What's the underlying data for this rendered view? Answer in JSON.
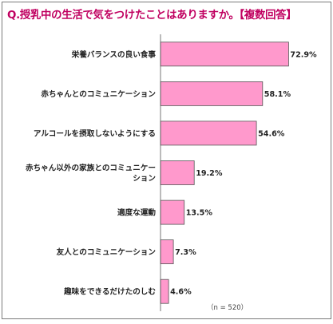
{
  "chart_data": {
    "type": "bar",
    "orientation": "horizontal",
    "title": "Q.授乳中の生活で気をつけたことはありますか。【複数回答】",
    "categories": [
      "栄養バランスの良い食事",
      "赤ちゃんとのコミュニケーション",
      "アルコールを摂取しないようにする",
      "赤ちゃん以外の家族とのコミュニケーション",
      "適度な運動",
      "友人とのコミュニケーション",
      "趣味をできるだけたのしむ"
    ],
    "category_lines": [
      [
        "栄養バランスの良い食事"
      ],
      [
        "赤ちゃんとのコミュニケーション"
      ],
      [
        "アルコールを摂取しないようにする"
      ],
      [
        "赤ちゃん以外の家族とのコミュニケー",
        "ション"
      ],
      [
        "適度な運動"
      ],
      [
        "友人とのコミュニケーション"
      ],
      [
        "趣味をできるだけたのしむ"
      ]
    ],
    "values": [
      72.9,
      58.1,
      54.6,
      19.2,
      13.5,
      7.3,
      4.6
    ],
    "value_labels": [
      "72.9%",
      "58.1%",
      "54.6%",
      "19.2%",
      "13.5%",
      "7.3%",
      "4.6%"
    ],
    "xlim": [
      0,
      100
    ],
    "sample_note": "（n = 520）",
    "bar_color": "#ff99cc",
    "bar_edge_color": "#555555",
    "title_color": "#c00060",
    "grid": false
  }
}
